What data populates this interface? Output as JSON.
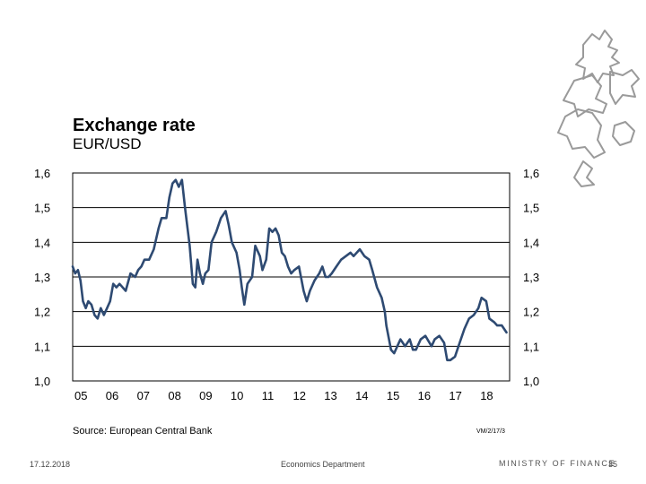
{
  "chart_data": {
    "type": "line",
    "title": "Exchange rate",
    "subtitle": "EUR/USD",
    "xlabel": "",
    "ylabel": "",
    "x_range": [
      2005.0,
      2019.0
    ],
    "ylim": [
      1.0,
      1.6
    ],
    "y_ticks": [
      1.0,
      1.1,
      1.2,
      1.3,
      1.4,
      1.5,
      1.6
    ],
    "y_tick_labels": [
      "1,0",
      "1,1",
      "1,2",
      "1,3",
      "1,4",
      "1,5",
      "1,6"
    ],
    "x_tick_labels": [
      "05",
      "06",
      "07",
      "08",
      "09",
      "10",
      "11",
      "12",
      "13",
      "14",
      "15",
      "16",
      "17",
      "18"
    ],
    "series": [
      {
        "name": "EUR/USD",
        "color": "#2e4a72",
        "x": [
          2005.0,
          2005.08,
          2005.17,
          2005.25,
          2005.33,
          2005.42,
          2005.5,
          2005.6,
          2005.7,
          2005.8,
          2005.9,
          2006.0,
          2006.1,
          2006.2,
          2006.3,
          2006.4,
          2006.5,
          2006.7,
          2006.85,
          2007.0,
          2007.1,
          2007.2,
          2007.3,
          2007.45,
          2007.6,
          2007.75,
          2007.85,
          2008.0,
          2008.1,
          2008.2,
          2008.3,
          2008.4,
          2008.5,
          2008.6,
          2008.75,
          2008.85,
          2008.93,
          2009.0,
          2009.08,
          2009.17,
          2009.25,
          2009.35,
          2009.45,
          2009.6,
          2009.75,
          2009.9,
          2010.0,
          2010.1,
          2010.25,
          2010.35,
          2010.42,
          2010.5,
          2010.6,
          2010.75,
          2010.85,
          2011.0,
          2011.08,
          2011.2,
          2011.3,
          2011.4,
          2011.5,
          2011.6,
          2011.7,
          2011.8,
          2011.9,
          2012.0,
          2012.1,
          2012.25,
          2012.4,
          2012.5,
          2012.6,
          2012.75,
          2012.9,
          2013.0,
          2013.1,
          2013.2,
          2013.3,
          2013.45,
          2013.6,
          2013.75,
          2013.9,
          2014.0,
          2014.2,
          2014.35,
          2014.5,
          2014.6,
          2014.75,
          2014.9,
          2015.0,
          2015.05,
          2015.2,
          2015.3,
          2015.5,
          2015.65,
          2015.8,
          2015.9,
          2016.0,
          2016.15,
          2016.3,
          2016.5,
          2016.6,
          2016.75,
          2016.9,
          2017.0,
          2017.1,
          2017.25,
          2017.4,
          2017.55,
          2017.7,
          2017.85,
          2018.0,
          2018.1,
          2018.25,
          2018.35,
          2018.5,
          2018.6,
          2018.75,
          2018.9
        ],
        "values": [
          1.33,
          1.31,
          1.32,
          1.29,
          1.23,
          1.21,
          1.23,
          1.22,
          1.19,
          1.18,
          1.21,
          1.19,
          1.21,
          1.23,
          1.28,
          1.27,
          1.28,
          1.26,
          1.31,
          1.3,
          1.32,
          1.33,
          1.35,
          1.35,
          1.38,
          1.44,
          1.47,
          1.47,
          1.53,
          1.57,
          1.58,
          1.56,
          1.58,
          1.5,
          1.39,
          1.28,
          1.27,
          1.35,
          1.31,
          1.28,
          1.31,
          1.32,
          1.4,
          1.43,
          1.47,
          1.49,
          1.45,
          1.4,
          1.37,
          1.32,
          1.27,
          1.22,
          1.28,
          1.3,
          1.39,
          1.36,
          1.32,
          1.35,
          1.44,
          1.43,
          1.44,
          1.42,
          1.37,
          1.36,
          1.33,
          1.31,
          1.32,
          1.33,
          1.26,
          1.23,
          1.26,
          1.29,
          1.31,
          1.33,
          1.3,
          1.3,
          1.31,
          1.33,
          1.35,
          1.36,
          1.37,
          1.36,
          1.38,
          1.36,
          1.35,
          1.32,
          1.27,
          1.24,
          1.2,
          1.16,
          1.09,
          1.08,
          1.12,
          1.1,
          1.12,
          1.09,
          1.09,
          1.12,
          1.13,
          1.1,
          1.12,
          1.13,
          1.11,
          1.06,
          1.06,
          1.07,
          1.11,
          1.15,
          1.18,
          1.19,
          1.21,
          1.24,
          1.23,
          1.18,
          1.17,
          1.16,
          1.16,
          1.14
        ]
      }
    ],
    "grid": true,
    "legend": "none"
  },
  "source": "Source: European Central Bank",
  "chart_code": "VM/2/17/3",
  "footer": {
    "date": "17.12.2018",
    "department": "Economics Department",
    "ministry": "MINISTRY OF FINANCE",
    "page": "35"
  }
}
